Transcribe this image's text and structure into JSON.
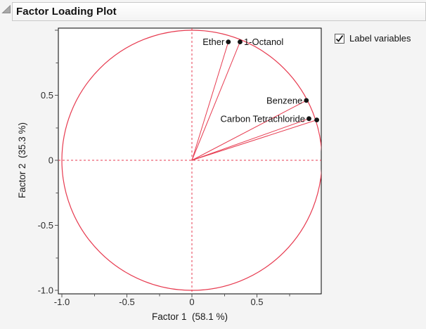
{
  "window": {
    "title": "Factor Loading Plot"
  },
  "controls": {
    "label_variables_checkbox": {
      "label": "Label variables",
      "checked": true
    }
  },
  "colors": {
    "accent_red": "#e73b50",
    "dot": "#141414",
    "frame_border": "#000000",
    "plot_bg": "#ffffff",
    "page_bg": "#f4f4f4",
    "tick": "#555555",
    "tick_label": "#2b2b2b",
    "point_label": "#111111"
  },
  "chart_data": {
    "type": "scatter",
    "title": "Factor Loading Plot",
    "xlabel": "Factor 1  (58.1 %)",
    "ylabel": "Factor 2  (35.3 %)",
    "xlim": [
      -1.03,
      0.99
    ],
    "ylim": [
      -1.03,
      1.02
    ],
    "grid": false,
    "unit_circle": true,
    "reference_lines": {
      "x": 0,
      "y": 0,
      "style": "dashed"
    },
    "rays_from_origin": true,
    "x_ticks": [
      {
        "value": -1.0,
        "label": "-1.0"
      },
      {
        "value": -0.5,
        "label": "-0.5"
      },
      {
        "value": 0,
        "label": "0"
      },
      {
        "value": 0.5,
        "label": "0.5"
      },
      {
        "value": 1.0,
        "label": ""
      }
    ],
    "y_ticks": [
      {
        "value": -1.0,
        "label": "-1.0"
      },
      {
        "value": -0.5,
        "label": "-0.5"
      },
      {
        "value": 0,
        "label": "0"
      },
      {
        "value": 0.5,
        "label": "0.5"
      },
      {
        "value": 1.0,
        "label": ""
      }
    ],
    "minor_tick_step": 0.25,
    "points": [
      {
        "label": "Ether",
        "x": 0.28,
        "y": 0.91,
        "label_side": "left"
      },
      {
        "label": "1-Octanol",
        "x": 0.37,
        "y": 0.91,
        "label_side": "right"
      },
      {
        "label": "Benzene",
        "x": 0.88,
        "y": 0.46,
        "label_side": "left"
      },
      {
        "label": "Carbon Tetrachloride",
        "x": 0.9,
        "y": 0.32,
        "label_side": "left"
      },
      {
        "label": "",
        "x": 0.96,
        "y": 0.31,
        "label_side": "none"
      }
    ]
  }
}
